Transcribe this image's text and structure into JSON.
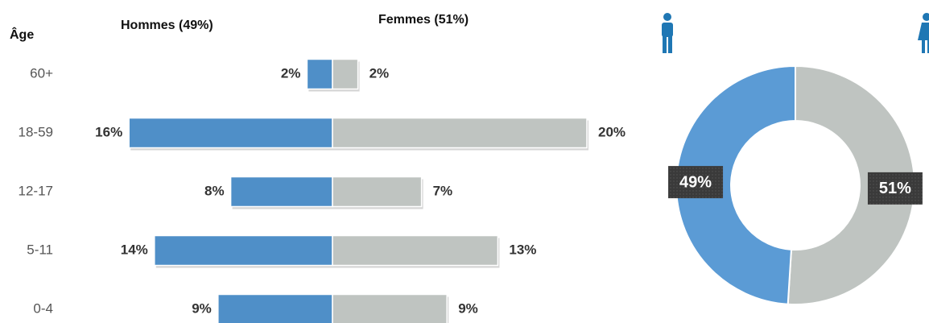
{
  "chart_data": [
    {
      "type": "pyramid",
      "axis_label": "Âge",
      "categories": [
        "60+",
        "18-59",
        "12-17",
        "5-11",
        "0-4"
      ],
      "series": [
        {
          "name": "Hommes (49%)",
          "color": "#4f8fc8",
          "values": [
            2,
            16,
            8,
            14,
            9
          ],
          "value_labels": [
            "2%",
            "16%",
            "8%",
            "14%",
            "9%"
          ]
        },
        {
          "name": "Femmes (51%)",
          "color": "#bfc4c1",
          "values": [
            2,
            20,
            7,
            13,
            9
          ],
          "value_labels": [
            "2%",
            "20%",
            "7%",
            "13%",
            "9%"
          ]
        }
      ]
    },
    {
      "type": "donut",
      "values": [
        49,
        51
      ],
      "value_labels": [
        "49%",
        "51%"
      ],
      "colors": [
        "#5b9bd5",
        "#bfc4c1"
      ]
    }
  ]
}
